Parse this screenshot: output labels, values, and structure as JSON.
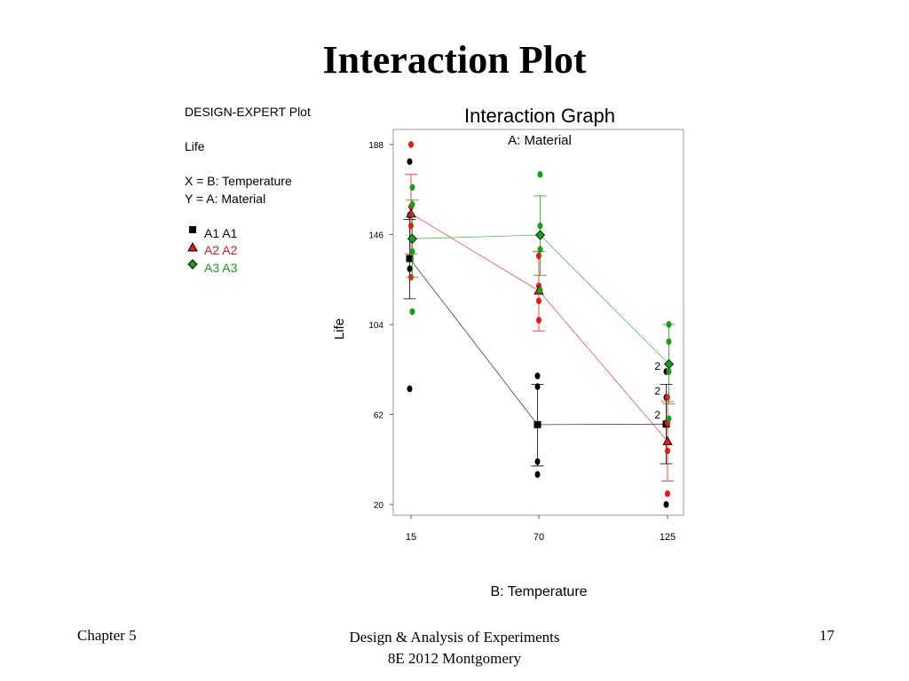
{
  "slide": {
    "title": "Interaction Plot",
    "footer_left": "Chapter 5",
    "footer_center_line1": "Design & Analysis of Experiments",
    "footer_center_line2": "8E 2012 Montgomery",
    "page_number": "17"
  },
  "info_panel": {
    "header": "DESIGN-EXPERT Plot",
    "response": "Life",
    "x_factor": "X = B: Temperature",
    "y_factor": "Y = A: Material",
    "legend": [
      {
        "label": "A1 A1",
        "color": "#000000",
        "marker": "square"
      },
      {
        "label": "A2 A2",
        "color": "#e8191a",
        "marker": "triangle"
      },
      {
        "label": "A3 A3",
        "color": "#1a9e1a",
        "marker": "diamond"
      }
    ]
  },
  "chart_data": {
    "type": "line",
    "title": "Interaction Graph",
    "subtitle": "A: Material",
    "xlabel": "B: Temperature",
    "ylabel": "Life",
    "categories": [
      "15",
      "70",
      "125"
    ],
    "x": [
      15,
      70,
      125
    ],
    "ylim": [
      15,
      195
    ],
    "yticks": [
      20,
      62,
      104,
      146,
      188
    ],
    "grid": false,
    "series": [
      {
        "name": "A1",
        "color": "#000000",
        "marker": "square",
        "means": [
          134.75,
          57.25,
          57.5
        ],
        "ci": [
          [
            116,
            153
          ],
          [
            38,
            76
          ],
          [
            39,
            76
          ]
        ],
        "observations": [
          [
            130,
            155,
            74,
            180
          ],
          [
            34,
            40,
            80,
            75
          ],
          [
            20,
            70,
            82,
            58
          ]
        ]
      },
      {
        "name": "A2",
        "color": "#e8191a",
        "marker": "triangle",
        "means": [
          155.75,
          119.75,
          49.5
        ],
        "ci": [
          [
            137,
            174
          ],
          [
            101,
            138
          ],
          [
            31,
            68
          ]
        ],
        "observations": [
          [
            150,
            188,
            159,
            126
          ],
          [
            136,
            122,
            106,
            115
          ],
          [
            25,
            70,
            58,
            45
          ]
        ]
      },
      {
        "name": "A3",
        "color": "#1a9e1a",
        "marker": "diamond",
        "means": [
          144.0,
          145.75,
          85.5
        ],
        "ci": [
          [
            126,
            162
          ],
          [
            127,
            164
          ],
          [
            67,
            104
          ]
        ],
        "observations": [
          [
            138,
            110,
            168,
            160
          ],
          [
            174,
            150,
            139,
            120
          ],
          [
            96,
            82,
            104,
            60
          ]
        ]
      }
    ],
    "point_labels": [
      "2",
      "2",
      "2"
    ]
  }
}
